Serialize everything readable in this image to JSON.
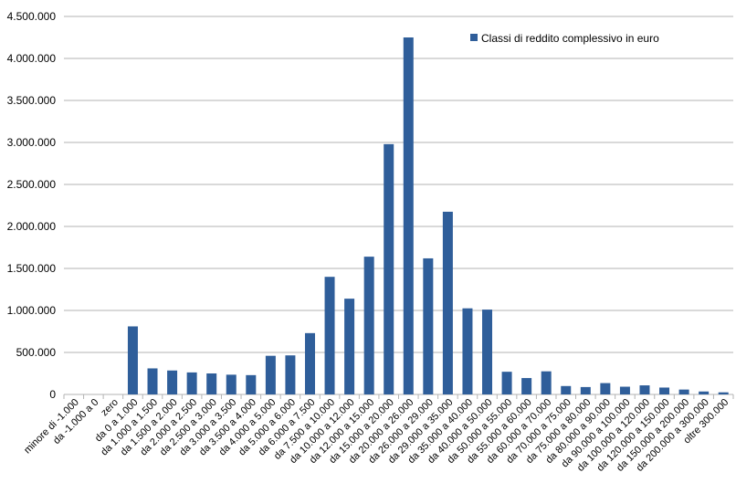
{
  "chart_data": {
    "type": "bar",
    "title": "",
    "xlabel": "",
    "ylabel": "",
    "ylim": [
      0,
      4500000
    ],
    "yticks": [
      0,
      500000,
      1000000,
      1500000,
      2000000,
      2500000,
      3000000,
      3500000,
      4000000,
      4500000
    ],
    "ytick_labels": [
      "0",
      "500.000",
      "1.000.000",
      "1.500.000",
      "2.000.000",
      "2.500.000",
      "3.000.000",
      "3.500.000",
      "4.000.000",
      "4.500.000"
    ],
    "grid": true,
    "legend_position": "top-right",
    "bar_color": "#2f5e9a",
    "grid_color": "#b3b3b3",
    "categories": [
      "minore di -1.000",
      "da -1.000 a 0",
      "zero",
      "da 0 a 1.000",
      "da 1.000 a 1.500",
      "da 1.500 a 2.000",
      "da 2.000 a 2.500",
      "da 2.500 a 3.000",
      "da 3.000 a 3.500",
      "da 3.500 a 4.000",
      "da 4.000 a 5.000",
      "da 5.000 a 6.000",
      "da 6.000 a 7.500",
      "da 7.500 a 10.000",
      "da 10.000 a 12.000",
      "da 12.000 a 15.000",
      "da 15.000 a 20.000",
      "da 20.000 a 26.000",
      "da 26.000 a 29.000",
      "da 29.000 a 35.000",
      "da 35.000 a 40.000",
      "da 40.000 a 50.000",
      "da 50.000 a 55.000",
      "da 55.000 a 60.000",
      "da 60.000 a 70.000",
      "da 70.000 a 75.000",
      "da 75.000 a 80.000",
      "da 80.000 a 90.000",
      "da 90.000 a 100.000",
      "da 100.000 a 120.000",
      "da 120.000 a 150.000",
      "da 150.000 a 200.000",
      "da 200.000 a 300.000",
      "oltre 300.000"
    ],
    "series": [
      {
        "name": "Classi di reddito complessivo in euro",
        "values": [
          0,
          0,
          0,
          810000,
          310000,
          285000,
          262000,
          250000,
          235000,
          230000,
          460000,
          465000,
          730000,
          1400000,
          1140000,
          1640000,
          2980000,
          4250000,
          1620000,
          2175000,
          1025000,
          1010000,
          270000,
          195000,
          275000,
          100000,
          88000,
          135000,
          92000,
          108000,
          82000,
          58000,
          35000,
          25000
        ]
      }
    ]
  }
}
